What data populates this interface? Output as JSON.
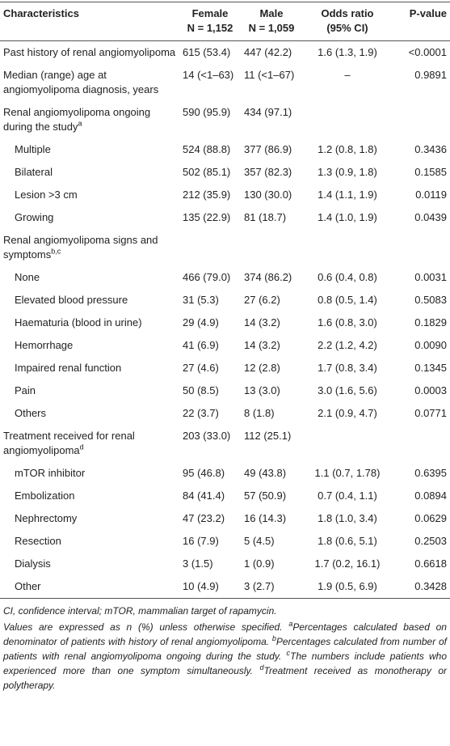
{
  "table": {
    "header": [
      {
        "title": "Characteristics"
      },
      {
        "title": "Female",
        "subtitle": "N = 1,152"
      },
      {
        "title": "Male",
        "subtitle": "N = 1,059"
      },
      {
        "title": "Odds ratio",
        "subtitle": "(95% CI)"
      },
      {
        "title": "P-value"
      }
    ],
    "rows": [
      {
        "label": "Past history of renal angiomyolipoma",
        "cells": [
          "615 (53.4)",
          "447 (42.2)",
          "1.6 (1.3, 1.9)",
          "<0.0001"
        ]
      },
      {
        "label": "Median (range) age at angiomyolipoma diagnosis, years",
        "cells": [
          "14 (<1–63)",
          "11 (<1–67)",
          "–",
          "0.9891"
        ]
      },
      {
        "label": "Renal angiomyolipoma ongoing during the study",
        "sup": "a",
        "cells": [
          "590 (95.9)",
          "434 (97.1)"
        ],
        "items": [
          {
            "label": "Multiple",
            "cells": [
              "524 (88.8)",
              "377 (86.9)",
              "1.2 (0.8, 1.8)",
              "0.3436"
            ]
          },
          {
            "label": "Bilateral",
            "cells": [
              "502 (85.1)",
              "357 (82.3)",
              "1.3 (0.9, 1.8)",
              "0.1585"
            ]
          },
          {
            "label": "Lesion >3 cm",
            "cells": [
              "212 (35.9)",
              "130 (30.0)",
              "1.4 (1.1, 1.9)",
              "0.0119"
            ]
          },
          {
            "label": "Growing",
            "cells": [
              "135 (22.9)",
              "81 (18.7)",
              "1.4 (1.0, 1.9)",
              "0.0439"
            ]
          }
        ]
      },
      {
        "label": "Renal angiomyolipoma signs and symptoms",
        "sup": "b,c",
        "items": [
          {
            "label": "None",
            "cells": [
              "466 (79.0)",
              "374 (86.2)",
              "0.6 (0.4, 0.8)",
              "0.0031"
            ]
          },
          {
            "label": "Elevated blood pressure",
            "cells": [
              "31 (5.3)",
              "27 (6.2)",
              "0.8 (0.5, 1.4)",
              "0.5083"
            ]
          },
          {
            "label": "Haematuria (blood in urine)",
            "cells": [
              "29 (4.9)",
              "14 (3.2)",
              "1.6 (0.8, 3.0)",
              "0.1829"
            ]
          },
          {
            "label": "Hemorrhage",
            "cells": [
              "41 (6.9)",
              "14 (3.2)",
              "2.2 (1.2, 4.2)",
              "0.0090"
            ]
          },
          {
            "label": "Impaired renal function",
            "cells": [
              "27 (4.6)",
              "12 (2.8)",
              "1.7 (0.8, 3.4)",
              "0.1345"
            ]
          },
          {
            "label": "Pain",
            "cells": [
              "50 (8.5)",
              "13 (3.0)",
              "3.0 (1.6, 5.6)",
              "0.0003"
            ]
          },
          {
            "label": "Others",
            "cells": [
              "22 (3.7)",
              "8 (1.8)",
              "2.1 (0.9, 4.7)",
              "0.0771"
            ]
          }
        ]
      },
      {
        "label": "Treatment received for renal angiomyolipoma",
        "sup": "d",
        "cells": [
          "203 (33.0)",
          "112 (25.1)"
        ],
        "items": [
          {
            "label": "mTOR inhibitor",
            "cells": [
              "95 (46.8)",
              "49 (43.8)",
              "1.1 (0.7, 1.78)",
              "0.6395"
            ]
          },
          {
            "label": "Embolization",
            "cells": [
              "84 (41.4)",
              "57 (50.9)",
              "0.7 (0.4, 1.1)",
              "0.0894"
            ]
          },
          {
            "label": "Nephrectomy",
            "cells": [
              "47 (23.2)",
              "16 (14.3)",
              "1.8 (1.0, 3.4)",
              "0.0629"
            ]
          },
          {
            "label": "Resection",
            "cells": [
              "16 (7.9)",
              "5 (4.5)",
              "1.8 (0.6, 5.1)",
              "0.2503"
            ]
          },
          {
            "label": "Dialysis",
            "cells": [
              "3 (1.5)",
              "1 (0.9)",
              "1.7 (0.2, 16.1)",
              "0.6618"
            ]
          },
          {
            "label": "Other",
            "cells": [
              "10 (4.9)",
              "3 (2.7)",
              "1.9 (0.5, 6.9)",
              "0.3428"
            ]
          }
        ]
      }
    ]
  },
  "notes": {
    "abbreviations": "CI, confidence interval; mTOR, mammalian target of rapamycin.",
    "general": "Values are expressed as n (%) unless otherwise specified.",
    "footnotes": [
      {
        "mark": "a",
        "text": "Percentages calculated based on denominator of patients with history of renal angiomyolipoma."
      },
      {
        "mark": "b",
        "text": "Percentages calculated from number of patients with renal angiomyolipoma ongoing during the study."
      },
      {
        "mark": "c",
        "text": "The numbers include patients who experienced more than one symptom simultaneously."
      },
      {
        "mark": "d",
        "text": "Treatment received as monotherapy or polytherapy."
      }
    ]
  }
}
